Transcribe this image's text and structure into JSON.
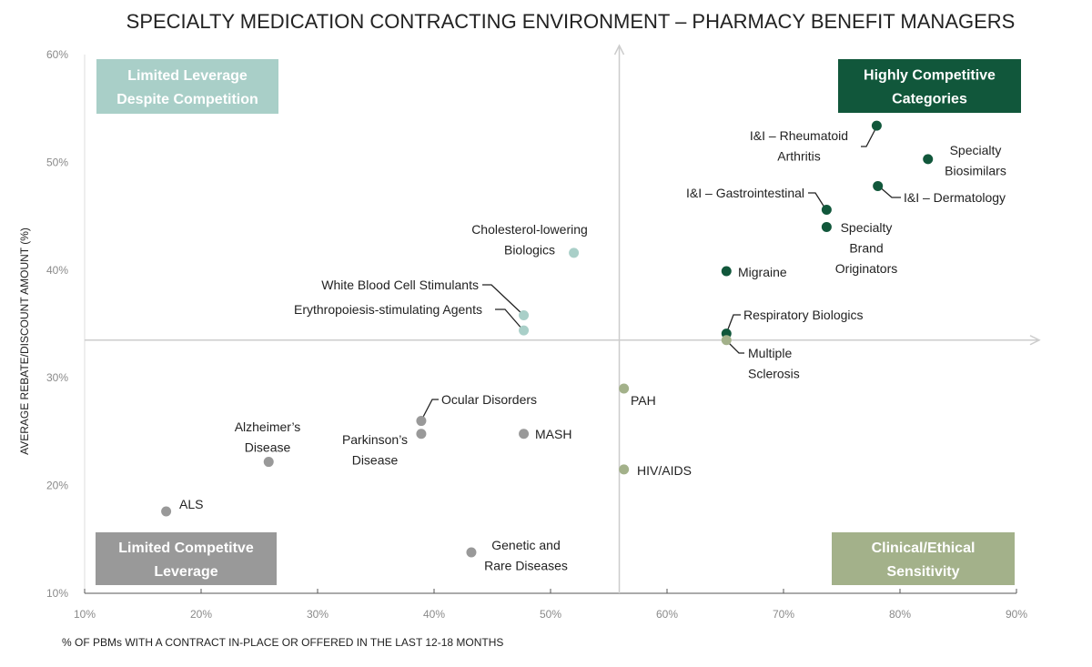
{
  "chart_data": {
    "type": "scatter",
    "title": "SPECIALTY MEDICATION CONTRACTING ENVIRONMENT – PHARMACY BENEFIT MANAGERS",
    "xlabel": "% OF PBMs WITH A CONTRACT IN-PLACE OR OFFERED IN THE LAST 12-18 MONTHS",
    "ylabel": "AVERAGE REBATE/DISCOUNT AMOUNT (%)",
    "xlim": [
      10,
      90
    ],
    "ylim": [
      10,
      60
    ],
    "xticks": [
      "10%",
      "20%",
      "30%",
      "40%",
      "50%",
      "60%",
      "70%",
      "80%",
      "90%"
    ],
    "yticks": [
      "10%",
      "20%",
      "30%",
      "40%",
      "50%",
      "60%"
    ],
    "grid": false,
    "quadrant_divider": {
      "x": 55.9,
      "y": 33.5
    },
    "quadrants": [
      {
        "name": "top-left",
        "lines": [
          "Limited Leverage",
          "Despite Competition"
        ],
        "color": "#a9cfc8"
      },
      {
        "name": "top-right",
        "lines": [
          "Highly Competitive",
          "Categories"
        ],
        "color": "#11573b"
      },
      {
        "name": "bottom-left",
        "lines": [
          "Limited Competitve",
          "Leverage"
        ],
        "color": "#999999"
      },
      {
        "name": "bottom-right",
        "lines": [
          "Clinical/Ethical",
          "Sensitivity"
        ],
        "color": "#a3b18a"
      }
    ],
    "points": [
      {
        "label": [
          "I&I – Rheumatoid",
          "Arthritis"
        ],
        "x": 78.0,
        "y": 53.4,
        "group": "top-right"
      },
      {
        "label": [
          "Specialty",
          "Biosimilars"
        ],
        "x": 82.4,
        "y": 50.3,
        "group": "top-right"
      },
      {
        "label": [
          "I&I – Dermatology"
        ],
        "x": 78.1,
        "y": 47.8,
        "group": "top-right"
      },
      {
        "label": [
          "I&I – Gastrointestinal"
        ],
        "x": 73.7,
        "y": 45.6,
        "group": "top-right"
      },
      {
        "label": [
          "Specialty",
          "Brand",
          "Originators"
        ],
        "x": 73.7,
        "y": 44.0,
        "group": "top-right"
      },
      {
        "label": [
          "Migraine"
        ],
        "x": 65.1,
        "y": 39.9,
        "group": "top-right"
      },
      {
        "label": [
          "Respiratory Biologics"
        ],
        "x": 65.1,
        "y": 34.1,
        "group": "top-right"
      },
      {
        "label": [
          "Multiple",
          "Sclerosis"
        ],
        "x": 65.1,
        "y": 33.5,
        "group": "bottom-right"
      },
      {
        "label": [
          "Cholesterol-lowering",
          "Biologics"
        ],
        "x": 52.0,
        "y": 41.6,
        "group": "top-left"
      },
      {
        "label": [
          "White Blood Cell Stimulants"
        ],
        "x": 47.7,
        "y": 35.8,
        "group": "top-left"
      },
      {
        "label": [
          "Erythropoiesis-stimulating Agents"
        ],
        "x": 47.7,
        "y": 34.4,
        "group": "top-left"
      },
      {
        "label": [
          "PAH"
        ],
        "x": 56.3,
        "y": 29.0,
        "group": "bottom-right"
      },
      {
        "label": [
          "HIV/AIDS"
        ],
        "x": 56.3,
        "y": 21.5,
        "group": "bottom-right"
      },
      {
        "label": [
          "Ocular Disorders"
        ],
        "x": 38.9,
        "y": 26.0,
        "group": "bottom-left"
      },
      {
        "label": [
          "Parkinson’s",
          "Disease"
        ],
        "x": 38.9,
        "y": 24.8,
        "group": "bottom-left"
      },
      {
        "label": [
          "MASH"
        ],
        "x": 47.7,
        "y": 24.8,
        "group": "bottom-left"
      },
      {
        "label": [
          "Alzheimer’s",
          "Disease"
        ],
        "x": 25.8,
        "y": 22.2,
        "group": "bottom-left"
      },
      {
        "label": [
          "ALS"
        ],
        "x": 17.0,
        "y": 17.6,
        "group": "bottom-left"
      },
      {
        "label": [
          "Genetic and",
          "Rare Diseases"
        ],
        "x": 43.2,
        "y": 13.8,
        "group": "bottom-left"
      }
    ]
  }
}
